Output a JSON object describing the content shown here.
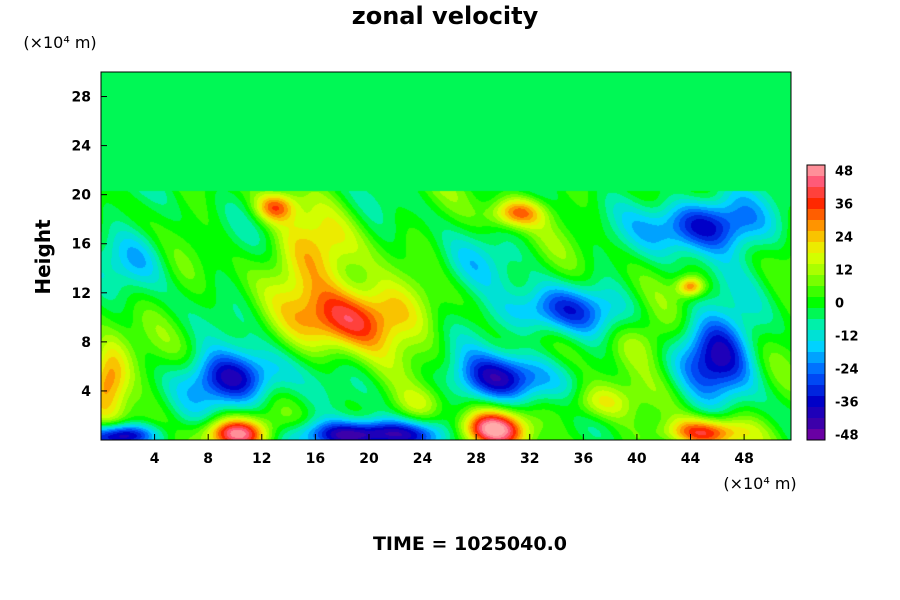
{
  "chart_data": {
    "type": "heatmap",
    "title": "zonal velocity",
    "ylabel": "Height",
    "xlabel": "",
    "x_unit": "(×10⁴ m)",
    "y_unit": "(×10⁴ m)",
    "xlim": [
      0,
      51.5
    ],
    "ylim": [
      0,
      30
    ],
    "x_ticks": [
      4,
      8,
      12,
      16,
      20,
      24,
      28,
      32,
      36,
      40,
      44,
      48
    ],
    "y_ticks": [
      4,
      8,
      12,
      16,
      20,
      24,
      28
    ],
    "colorbar": {
      "range": [
        -50,
        50
      ],
      "ticks": [
        48,
        36,
        24,
        12,
        0,
        -12,
        -24,
        -36,
        -48
      ]
    },
    "background_value": 0,
    "upper_layer_value": -4,
    "upper_layer_start_y": 20,
    "features": [
      {
        "x": 19,
        "y": 10,
        "sx": 4.5,
        "sy": 2.8,
        "amp": 40
      },
      {
        "x": 16,
        "y": 15,
        "sx": 3.5,
        "sy": 3.5,
        "amp": 22
      },
      {
        "x": 10,
        "y": 5,
        "sx": 3.5,
        "sy": 2.2,
        "amp": -40
      },
      {
        "x": 30,
        "y": 5,
        "sx": 3.5,
        "sy": 2.0,
        "amp": -38
      },
      {
        "x": 34,
        "y": 10.5,
        "sx": 4.0,
        "sy": 2.0,
        "amp": -30
      },
      {
        "x": 45,
        "y": 17.5,
        "sx": 4.0,
        "sy": 2.2,
        "amp": -40
      },
      {
        "x": 46,
        "y": 7,
        "sx": 2.8,
        "sy": 3.5,
        "amp": -36
      },
      {
        "x": 0.5,
        "y": 5,
        "sx": 1.6,
        "sy": 3.0,
        "amp": 35
      },
      {
        "x": 10,
        "y": 0.5,
        "sx": 2.5,
        "sy": 1.3,
        "amp": 50
      },
      {
        "x": 29,
        "y": 0.8,
        "sx": 2.5,
        "sy": 1.5,
        "amp": 50
      },
      {
        "x": 20,
        "y": 0.4,
        "sx": 5.0,
        "sy": 1.2,
        "amp": -50
      },
      {
        "x": 1.5,
        "y": 0.3,
        "sx": 2.5,
        "sy": 1.0,
        "amp": -50
      },
      {
        "x": 45,
        "y": 0.6,
        "sx": 3.0,
        "sy": 1.2,
        "amp": 38
      },
      {
        "x": 13,
        "y": 19,
        "sx": 1.5,
        "sy": 1.2,
        "amp": 28
      },
      {
        "x": 31,
        "y": 18.5,
        "sx": 2.0,
        "sy": 1.2,
        "amp": 30
      },
      {
        "x": 44,
        "y": 12.5,
        "sx": 1.0,
        "sy": 0.8,
        "amp": 30
      },
      {
        "x": 40,
        "y": 8,
        "sx": 2.5,
        "sy": 2.0,
        "amp": 12
      },
      {
        "x": 3,
        "y": 15,
        "sx": 2.5,
        "sy": 2.5,
        "amp": -14
      },
      {
        "x": 27,
        "y": 14,
        "sx": 3.0,
        "sy": 2.5,
        "amp": -10
      },
      {
        "x": 37,
        "y": 3,
        "sx": 2.5,
        "sy": 1.5,
        "amp": 20
      },
      {
        "x": 24,
        "y": 3,
        "sx": 2.0,
        "sy": 1.5,
        "amp": 14
      }
    ]
  },
  "footer": {
    "time_label": "TIME = 1025040.0"
  }
}
